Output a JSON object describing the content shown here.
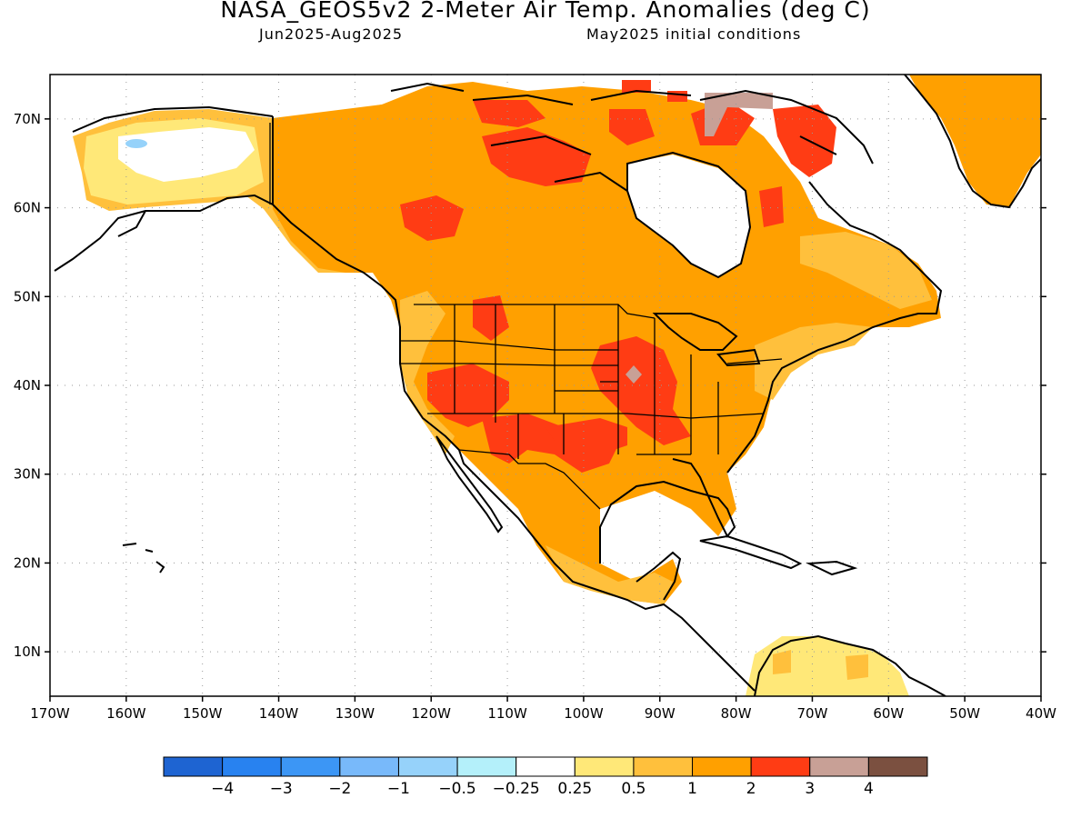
{
  "title": "NASA_GEOS5v2 2-Meter Air Temp. Anomalies (deg C)",
  "period": "Jun2025-Aug2025",
  "init": "May2025 initial conditions",
  "map": {
    "projection": "lat-lon",
    "lon_range": [
      -170,
      -40
    ],
    "lat_range": [
      5,
      75
    ],
    "grid": "dotted",
    "lon_ticks": [
      {
        "v": -170,
        "label": "170W"
      },
      {
        "v": -160,
        "label": "160W"
      },
      {
        "v": -150,
        "label": "150W"
      },
      {
        "v": -140,
        "label": "140W"
      },
      {
        "v": -130,
        "label": "130W"
      },
      {
        "v": -120,
        "label": "120W"
      },
      {
        "v": -110,
        "label": "110W"
      },
      {
        "v": -100,
        "label": "100W"
      },
      {
        "v": -90,
        "label": "90W"
      },
      {
        "v": -80,
        "label": "80W"
      },
      {
        "v": -70,
        "label": "70W"
      },
      {
        "v": -60,
        "label": "60W"
      },
      {
        "v": -50,
        "label": "50W"
      },
      {
        "v": -40,
        "label": "40W"
      }
    ],
    "lat_ticks": [
      {
        "v": 70,
        "label": "70N"
      },
      {
        "v": 60,
        "label": "60N"
      },
      {
        "v": 50,
        "label": "50N"
      },
      {
        "v": 40,
        "label": "40N"
      },
      {
        "v": 30,
        "label": "30N"
      },
      {
        "v": 20,
        "label": "20N"
      },
      {
        "v": 10,
        "label": "10N"
      }
    ]
  },
  "colorbar": {
    "colors": [
      "#1e64d2",
      "#2882f0",
      "#3c96f5",
      "#78b9fa",
      "#96d2fa",
      "#b4f0fa",
      "#ffffff",
      "#ffe878",
      "#ffc03c",
      "#ffa000",
      "#ff3c14",
      "#c8a096",
      "#7b5040"
    ],
    "labels": [
      "-4",
      "-3",
      "-2",
      "-1",
      "-0.5",
      "-0.25",
      "0.25",
      "0.5",
      "1",
      "2",
      "3",
      "4"
    ]
  },
  "palette": {
    "weak_warm": "#ffe878",
    "mod_warm": "#ffc03c",
    "warm": "#ffa000",
    "strong_warm": "#ff3c14",
    "very_strong": "#c8a096",
    "cool": "#96d2fa"
  }
}
